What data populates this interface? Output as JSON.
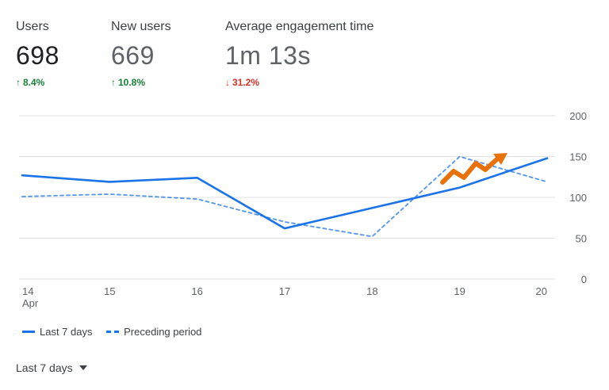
{
  "metrics": [
    {
      "label": "Users",
      "value": "698",
      "change": "8.4%",
      "direction": "up"
    },
    {
      "label": "New users",
      "value": "669",
      "change": "10.8%",
      "direction": "up"
    },
    {
      "label": "Average engagement time",
      "value": "1m 13s",
      "change": "31.2%",
      "direction": "down"
    }
  ],
  "colors": {
    "line": "#1a73e8",
    "up": "#188038",
    "down": "#d93025",
    "trend_arrow": "#e8710a",
    "grid": "#e0e0e0"
  },
  "chart_data": {
    "type": "line",
    "x": [
      "14",
      "15",
      "16",
      "17",
      "18",
      "19",
      "20"
    ],
    "x_sublabel": {
      "14": "Apr"
    },
    "ylim": [
      0,
      200
    ],
    "yticks": [
      0,
      50,
      100,
      150,
      200
    ],
    "grid": true,
    "y_axis_side": "right",
    "series": [
      {
        "name": "Last 7 days",
        "style": "solid",
        "values": [
          127,
          119,
          124,
          62,
          87,
          112,
          148
        ]
      },
      {
        "name": "Preceding period",
        "style": "dashed",
        "values": [
          101,
          104,
          98,
          70,
          52,
          150,
          119
        ]
      }
    ],
    "legend_position": "bottom-left"
  },
  "legend": {
    "items": [
      "Last 7 days",
      "Preceding period"
    ]
  },
  "date_range": {
    "label": "Last 7 days",
    "icon": "caret-down-icon"
  },
  "overlay": {
    "icon": "trend-up-arrow-icon"
  }
}
